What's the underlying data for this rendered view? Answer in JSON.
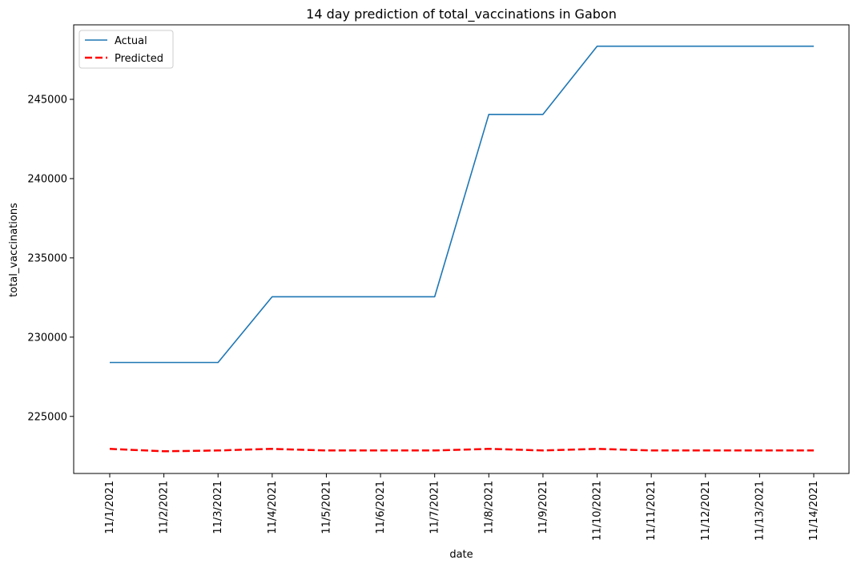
{
  "chart_data": {
    "type": "line",
    "title": "14 day prediction of total_vaccinations in Gabon",
    "xlabel": "date",
    "ylabel": "total_vaccinations",
    "x": [
      "11/1/2021",
      "11/2/2021",
      "11/3/2021",
      "11/4/2021",
      "11/5/2021",
      "11/6/2021",
      "11/7/2021",
      "11/8/2021",
      "11/9/2021",
      "11/10/2021",
      "11/11/2021",
      "11/12/2021",
      "11/13/2021",
      "11/14/2021"
    ],
    "ylim": [
      221400,
      249700
    ],
    "yticks": [
      225000,
      230000,
      235000,
      240000,
      245000
    ],
    "grid": false,
    "legend_position": "top-left",
    "series": [
      {
        "name": "Actual",
        "color": "#1f77b4",
        "style": "solid",
        "values": [
          228400,
          228400,
          228400,
          232550,
          232550,
          232550,
          232550,
          244050,
          244050,
          248350,
          248350,
          248350,
          248350,
          248350
        ]
      },
      {
        "name": "Predicted",
        "color": "#ff0000",
        "style": "dashed",
        "values": [
          222950,
          222800,
          222850,
          222950,
          222850,
          222850,
          222850,
          222950,
          222850,
          222950,
          222850,
          222850,
          222850,
          222850
        ]
      }
    ]
  }
}
